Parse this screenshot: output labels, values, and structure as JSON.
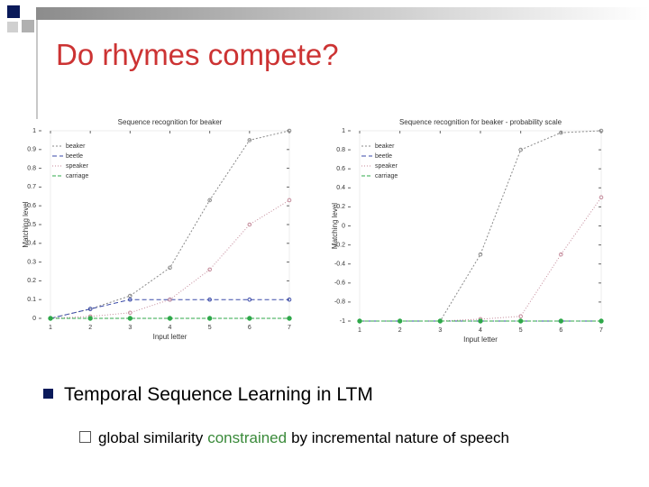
{
  "slide_title": "Do rhymes compete?",
  "bullets": [
    {
      "text": "Temporal Sequence Learning in LTM",
      "sub": [
        "global similarity",
        "constrained",
        "by incremental nature of speech"
      ]
    }
  ],
  "chart_data": [
    {
      "type": "line",
      "title": "Sequence recognition for beaker",
      "x_label": "Input letter",
      "y_label": "Matching level",
      "x": [
        1,
        2,
        3,
        4,
        5,
        6,
        7
      ],
      "xlim": [
        1,
        7
      ],
      "xticks": [
        1,
        2,
        3,
        4,
        5,
        6,
        7
      ],
      "ylim": [
        0,
        1
      ],
      "yticks": [
        0,
        0.1,
        0.2,
        0.3,
        0.4,
        0.5,
        0.6,
        0.7,
        0.8,
        0.9,
        1
      ],
      "legend": "upper left",
      "series": [
        {
          "name": "beaker",
          "color": "#8a8a8a",
          "values": [
            0,
            0.05,
            0.12,
            0.27,
            0.63,
            0.95,
            1
          ]
        },
        {
          "name": "beetle",
          "color": "#3a4aa8",
          "values": [
            0,
            0.05,
            0.1,
            0.1,
            0.1,
            0.1,
            0.1
          ]
        },
        {
          "name": "speaker",
          "color": "#c48a9a",
          "values": [
            0,
            0.01,
            0.03,
            0.1,
            0.26,
            0.5,
            0.63
          ]
        },
        {
          "name": "carriage",
          "color": "#2fa84a",
          "values": [
            0,
            0,
            0,
            0,
            0,
            0,
            0
          ]
        }
      ]
    },
    {
      "type": "line",
      "title": "Sequence recognition for beaker - probability scale",
      "x_label": "Input letter",
      "y_label": "Matching level",
      "x": [
        1,
        2,
        3,
        4,
        5,
        6,
        7
      ],
      "xlim": [
        1,
        7
      ],
      "xticks": [
        1,
        2,
        3,
        4,
        5,
        6,
        7
      ],
      "ylim": [
        -1,
        1
      ],
      "yticks": [
        -1,
        -0.8,
        -0.6,
        -0.4,
        -0.2,
        0,
        0.2,
        0.4,
        0.6,
        0.8,
        1
      ],
      "legend": "upper left",
      "series": [
        {
          "name": "beaker",
          "color": "#8a8a8a",
          "values": [
            -1,
            -1,
            -1,
            -0.3,
            0.8,
            0.98,
            1
          ]
        },
        {
          "name": "beetle",
          "color": "#3a4aa8",
          "values": [
            -1,
            -1,
            -1,
            -1,
            -1,
            -1,
            -1
          ]
        },
        {
          "name": "speaker",
          "color": "#c48a9a",
          "values": [
            -1,
            -1,
            -1,
            -0.98,
            -0.95,
            -0.3,
            0.3
          ]
        },
        {
          "name": "carriage",
          "color": "#2fa84a",
          "values": [
            -1,
            -1,
            -1,
            -1,
            -1,
            -1,
            -1
          ]
        }
      ]
    }
  ]
}
